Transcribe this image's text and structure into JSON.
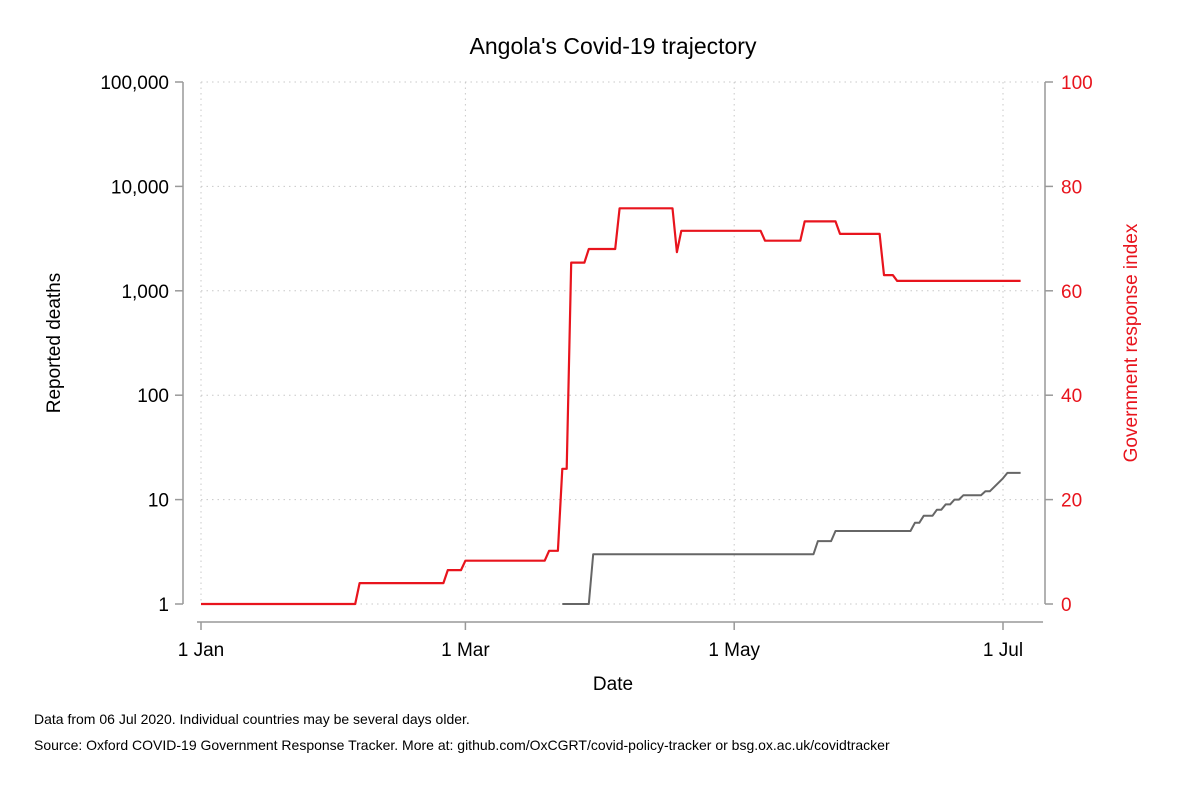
{
  "chart_data": {
    "type": "line",
    "title": "Angola's Covid-19 trajectory",
    "xlabel": "Date",
    "ylabel_left": "Reported deaths",
    "ylabel_right": "Government response index",
    "x_ticks": [
      {
        "date": "2020-01-01",
        "label": "1 Jan"
      },
      {
        "date": "2020-03-01",
        "label": "1 Mar"
      },
      {
        "date": "2020-05-01",
        "label": "1 May"
      },
      {
        "date": "2020-07-01",
        "label": "1 Jul"
      }
    ],
    "xlim": [
      "2020-01-01",
      "2020-07-06"
    ],
    "left_axis": {
      "scale": "log",
      "ylim": [
        1,
        100000
      ],
      "ticks": [
        {
          "value": 1,
          "label": "1"
        },
        {
          "value": 10,
          "label": "10"
        },
        {
          "value": 100,
          "label": "100"
        },
        {
          "value": 1000,
          "label": "1,000"
        },
        {
          "value": 10000,
          "label": "10,000"
        },
        {
          "value": 100000,
          "label": "100,000"
        }
      ]
    },
    "right_axis": {
      "scale": "linear",
      "ylim": [
        0,
        100
      ],
      "ticks": [
        {
          "value": 0,
          "label": "0"
        },
        {
          "value": 20,
          "label": "20"
        },
        {
          "value": 40,
          "label": "40"
        },
        {
          "value": 60,
          "label": "60"
        },
        {
          "value": 80,
          "label": "80"
        },
        {
          "value": 100,
          "label": "100"
        }
      ]
    },
    "grid": true,
    "series": [
      {
        "axis": "right",
        "color": "#e8141d",
        "step": true,
        "points": [
          [
            "2020-01-01",
            0
          ],
          [
            "2020-02-05",
            0
          ],
          [
            "2020-02-06",
            4
          ],
          [
            "2020-02-25",
            4
          ],
          [
            "2020-02-26",
            6.5
          ],
          [
            "2020-02-29",
            6.5
          ],
          [
            "2020-03-01",
            8.3
          ],
          [
            "2020-03-19",
            8.3
          ],
          [
            "2020-03-20",
            10.2
          ],
          [
            "2020-03-22",
            10.2
          ],
          [
            "2020-03-23",
            25.9
          ],
          [
            "2020-03-24",
            25.9
          ],
          [
            "2020-03-25",
            65.4
          ],
          [
            "2020-03-28",
            65.4
          ],
          [
            "2020-03-29",
            68
          ],
          [
            "2020-04-04",
            68
          ],
          [
            "2020-04-05",
            75.8
          ],
          [
            "2020-04-17",
            75.8
          ],
          [
            "2020-04-18",
            67.4
          ],
          [
            "2020-04-19",
            71.5
          ],
          [
            "2020-05-07",
            71.5
          ],
          [
            "2020-05-08",
            69.6
          ],
          [
            "2020-05-16",
            69.6
          ],
          [
            "2020-05-17",
            73.3
          ],
          [
            "2020-05-24",
            73.3
          ],
          [
            "2020-05-25",
            70.9
          ],
          [
            "2020-06-03",
            70.9
          ],
          [
            "2020-06-04",
            63
          ],
          [
            "2020-06-06",
            63
          ],
          [
            "2020-06-07",
            61.9
          ],
          [
            "2020-07-05",
            61.9
          ]
        ]
      },
      {
        "axis": "left",
        "color": "#666666",
        "step": true,
        "points": [
          [
            "2020-03-23",
            1
          ],
          [
            "2020-03-29",
            1
          ],
          [
            "2020-03-30",
            3
          ],
          [
            "2020-05-19",
            3
          ],
          [
            "2020-05-20",
            4
          ],
          [
            "2020-05-23",
            4
          ],
          [
            "2020-05-24",
            5
          ],
          [
            "2020-06-10",
            5
          ],
          [
            "2020-06-11",
            6
          ],
          [
            "2020-06-12",
            6
          ],
          [
            "2020-06-13",
            7
          ],
          [
            "2020-06-15",
            7
          ],
          [
            "2020-06-16",
            8
          ],
          [
            "2020-06-17",
            8
          ],
          [
            "2020-06-18",
            9
          ],
          [
            "2020-06-19",
            9
          ],
          [
            "2020-06-20",
            10
          ],
          [
            "2020-06-21",
            10
          ],
          [
            "2020-06-22",
            11
          ],
          [
            "2020-06-26",
            11
          ],
          [
            "2020-06-27",
            12
          ],
          [
            "2020-06-28",
            12
          ],
          [
            "2020-07-01",
            16
          ],
          [
            "2020-07-02",
            18
          ],
          [
            "2020-07-05",
            18
          ]
        ]
      }
    ]
  },
  "footer": {
    "note1": "Data from 06 Jul 2020. Individual countries may be several days older.",
    "note2": "Source: Oxford COVID-19 Government Response Tracker. More at: github.com/OxCGRT/covid-policy-tracker or bsg.ox.ac.uk/covidtracker"
  },
  "colors": {
    "response_axis": "#e8141d",
    "deaths_line": "#666666",
    "axis_line": "#999999"
  }
}
